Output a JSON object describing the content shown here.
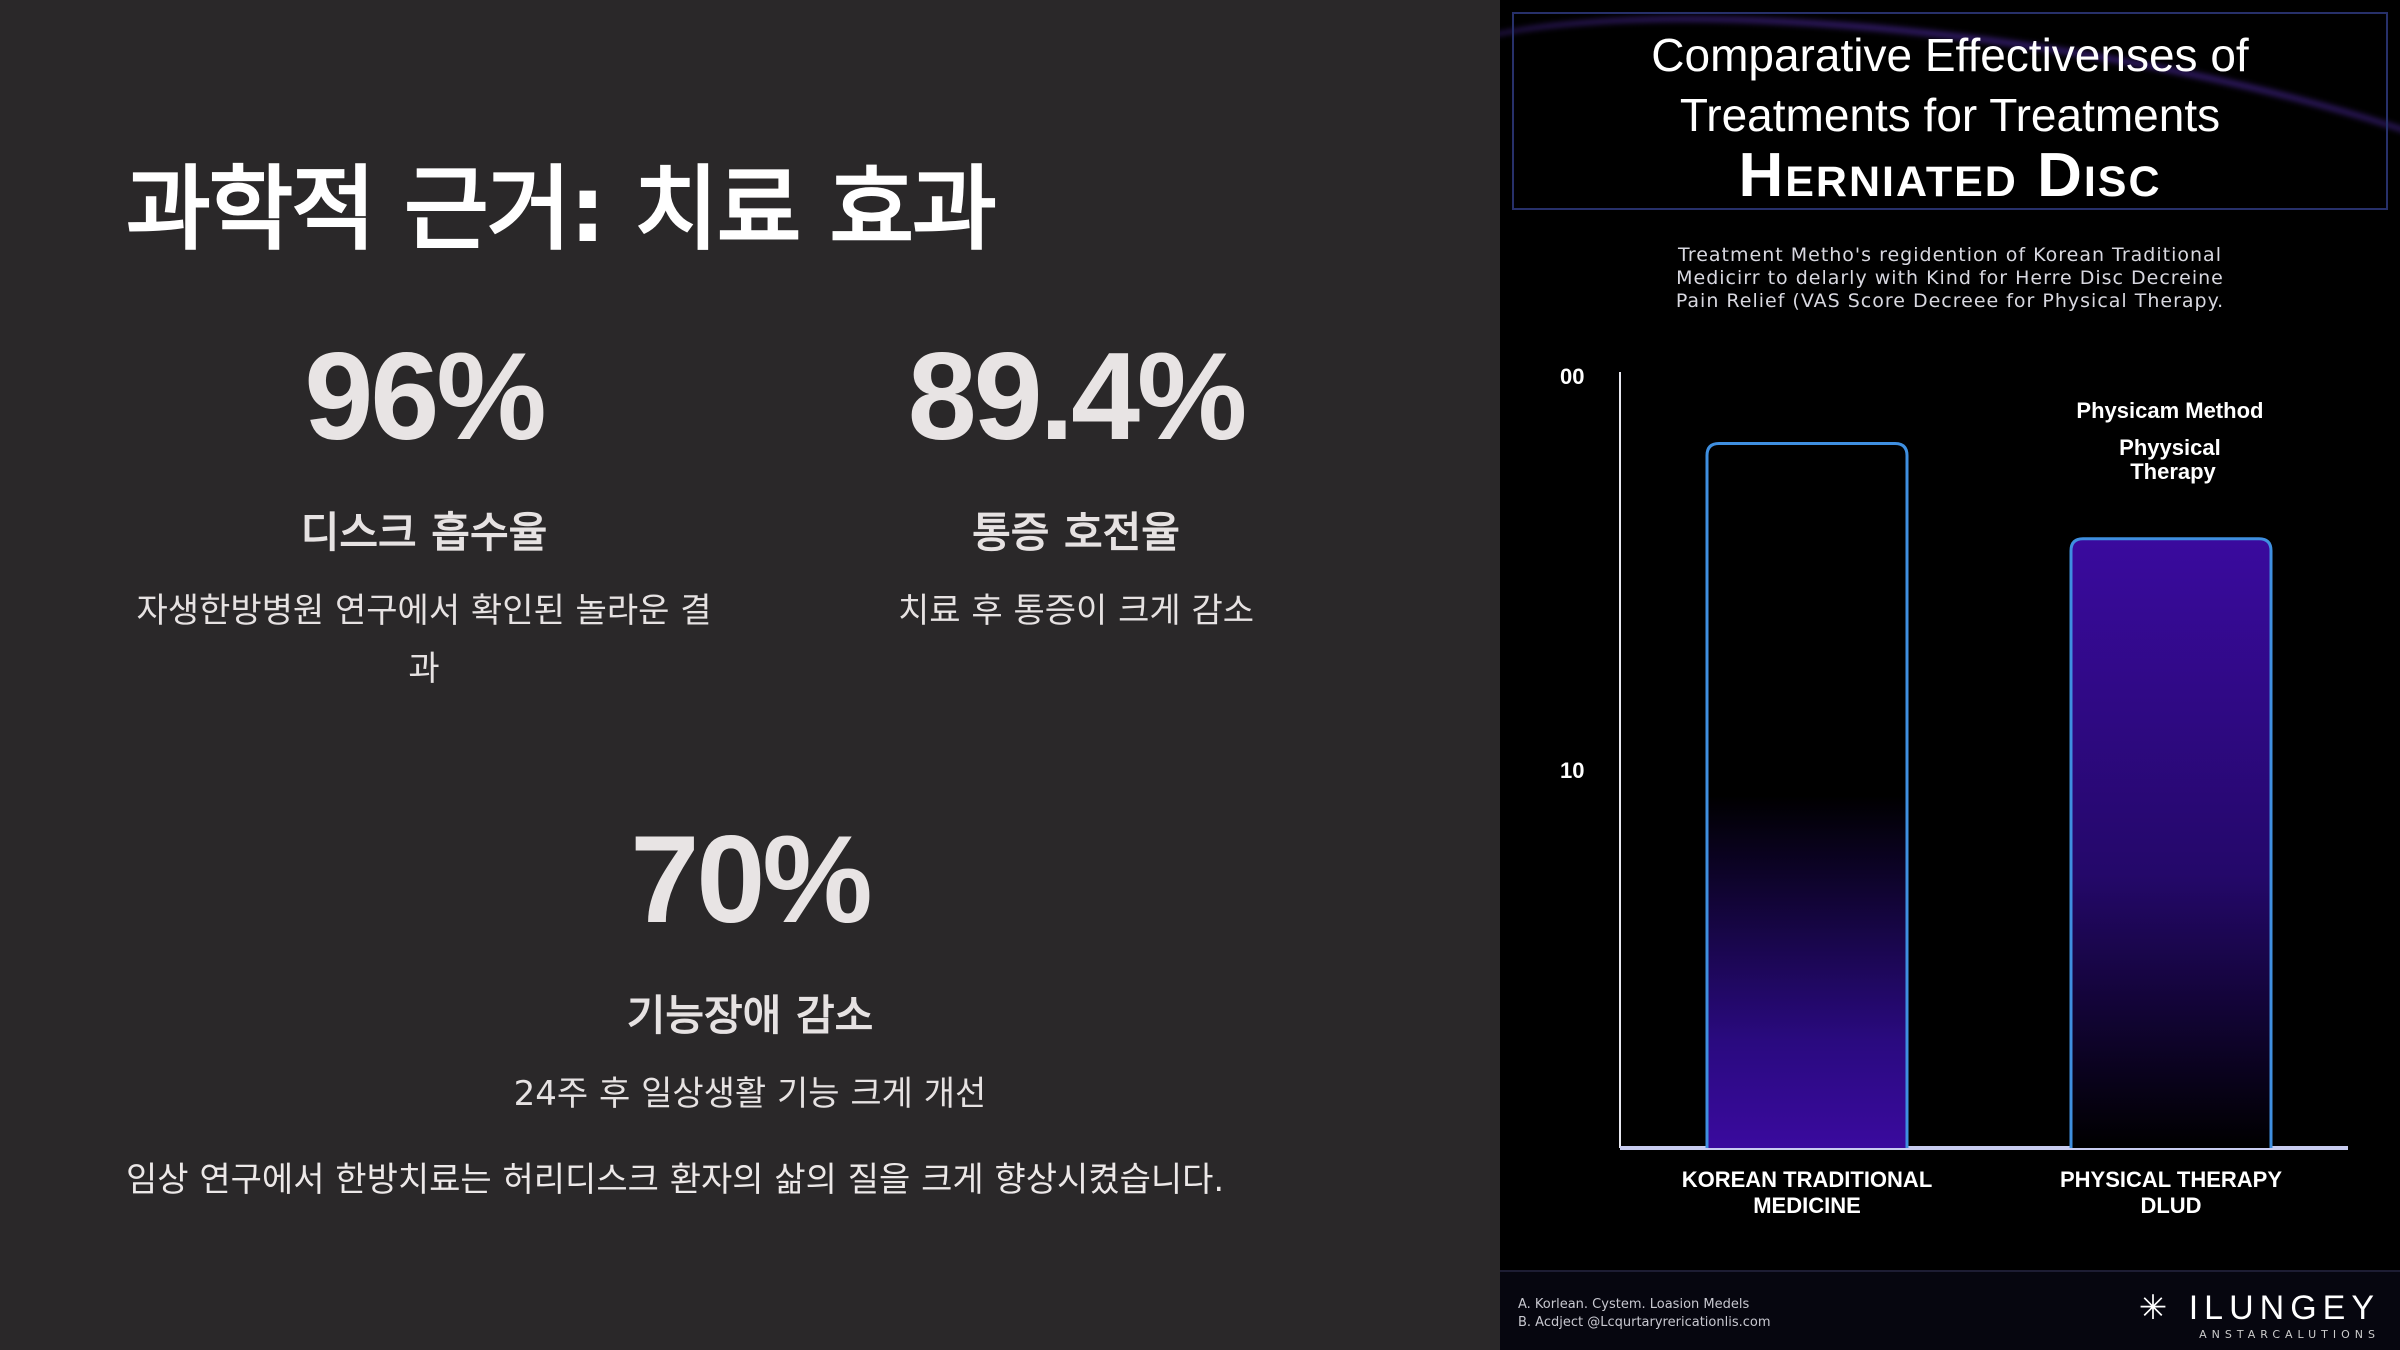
{
  "slide": {
    "title": "과학적 근거: 치료 효과",
    "stats": [
      {
        "value": "96%",
        "label": "디스크 흡수율",
        "description": "자생한방병원 연구에서 확인된 놀라운 결과"
      },
      {
        "value": "89.4%",
        "label": "통증 호전율",
        "description": "치료 후 통증이 크게 감소"
      },
      {
        "value": "70%",
        "label": "기능장애 감소",
        "description": "24주 후 일상생활 기능 크게 개선"
      }
    ],
    "footer_text": "임상 연구에서 한방치료는 허리디스크 환자의 삶의 질을 크게 향상시켰습니다."
  },
  "infographic": {
    "title_line1": "Comparative Effectivenses of",
    "title_line2": "Treatments for Treatments",
    "title_line3": "Herniated Disc",
    "subtitle": [
      "Treatment Metho's regidention of Korean Traditional",
      "Medicirr to delarly with Kind for Herre Disc Decreine",
      "Pain Relief (VAS Score Decreee for Physical Therapy."
    ],
    "annotation": [
      "Physicam Method",
      "Phyysical",
      "Therapy"
    ],
    "footnotes": [
      "A. Korlean. Cystem. Loasion Medels",
      "B. Acdject @Lcqurtaryrericationlis.com"
    ],
    "logo_name": "ILUNGEY",
    "logo_tagline": "ANSTARCALUTIONS",
    "colors": {
      "bar_border": "#3f8fe0",
      "bar_fill": "#3a0a9e",
      "background": "#000000"
    }
  },
  "chart_data": {
    "type": "bar",
    "categories": [
      "Korean Traditional Medicine",
      "Physical Therapy dlud"
    ],
    "category_lines": [
      [
        "Korean Traditional",
        "Medicine"
      ],
      [
        "Physical Therapy",
        "dlud"
      ]
    ],
    "values": [
      18.5,
      16
    ],
    "ytick_labels": [
      "00",
      "10"
    ],
    "ylim": [
      0,
      20.3
    ],
    "grid": false
  }
}
